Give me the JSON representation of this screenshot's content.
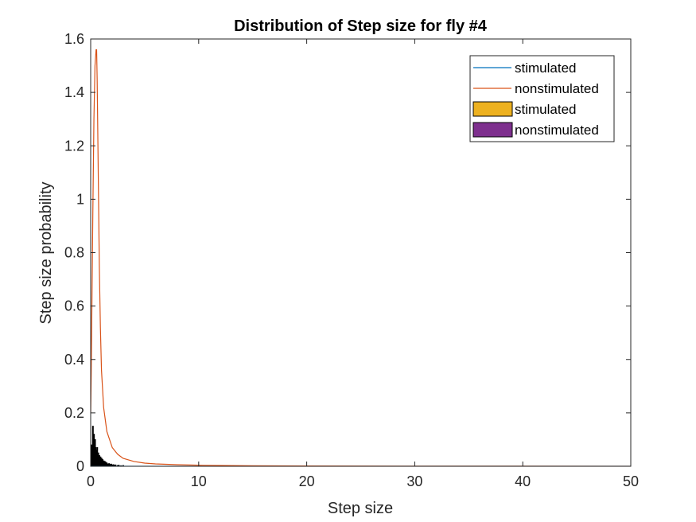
{
  "chart_data": {
    "type": "line",
    "title": "Distribution of Step size for fly #4",
    "xlabel": "Step size",
    "ylabel": "Step size probability",
    "xlim": [
      0,
      50
    ],
    "ylim": [
      0,
      1.6
    ],
    "xticks": [
      0,
      10,
      20,
      30,
      40,
      50
    ],
    "yticks": [
      0,
      0.2,
      0.4,
      0.6,
      0.8,
      1,
      1.2,
      1.4,
      1.6
    ],
    "xtick_labels": [
      "0",
      "10",
      "20",
      "30",
      "40",
      "50"
    ],
    "ytick_labels": [
      "0",
      "0.2",
      "0.4",
      "0.6",
      "0.8",
      "1",
      "1.2",
      "1.4",
      "1.6"
    ],
    "grid": false,
    "legend_position": "top-right",
    "legend": [
      {
        "label": "stimulated",
        "kind": "line",
        "color": "#0072BD"
      },
      {
        "label": "nonstimulated",
        "kind": "line",
        "color": "#D95319"
      },
      {
        "label": "stimulated",
        "kind": "bar",
        "color": "#EDB120"
      },
      {
        "label": "nonstimulated",
        "kind": "bar",
        "color": "#7E2F8E"
      }
    ],
    "series": [
      {
        "name": "stimulated",
        "kind": "line",
        "color": "#0072BD",
        "x": [
          0,
          50
        ],
        "y": [
          0,
          0
        ]
      },
      {
        "name": "nonstimulated",
        "kind": "line",
        "color": "#D95319",
        "x": [
          0,
          0.05,
          0.1,
          0.2,
          0.3,
          0.4,
          0.5,
          0.55,
          0.6,
          0.7,
          0.8,
          0.9,
          1.0,
          1.2,
          1.5,
          2.0,
          2.5,
          3,
          4,
          5,
          6,
          8,
          10,
          15,
          20,
          30,
          40,
          50
        ],
        "y": [
          0.2,
          0.35,
          0.55,
          0.95,
          1.3,
          1.5,
          1.56,
          1.56,
          1.45,
          1.1,
          0.75,
          0.52,
          0.36,
          0.22,
          0.13,
          0.07,
          0.045,
          0.03,
          0.018,
          0.012,
          0.009,
          0.006,
          0.004,
          0.002,
          0.001,
          0.0005,
          0.0003,
          0.0002
        ]
      },
      {
        "name": "stimulated",
        "kind": "bar",
        "color": "#EDB120",
        "x": [
          0.1,
          0.2,
          0.3,
          0.4,
          0.5,
          0.6,
          0.7,
          0.8,
          0.9,
          1.0,
          1.1,
          1.2,
          1.3,
          1.4,
          1.5,
          1.7,
          1.9,
          2.1,
          2.3,
          2.6,
          3.0
        ],
        "y": [
          0.08,
          0.15,
          0.12,
          0.1,
          0.06,
          0.07,
          0.05,
          0.04,
          0.035,
          0.03,
          0.025,
          0.02,
          0.018,
          0.015,
          0.012,
          0.01,
          0.008,
          0.006,
          0.005,
          0.004,
          0.003
        ]
      },
      {
        "name": "nonstimulated",
        "kind": "bar",
        "color": "#7E2F8E",
        "x": [
          0.15,
          0.25,
          0.35,
          0.45,
          0.55,
          0.65,
          0.75,
          0.85,
          0.95,
          1.05,
          1.15,
          1.25,
          1.35,
          1.45,
          1.6,
          1.8,
          2.0,
          2.2,
          2.5,
          2.8
        ],
        "y": [
          0.06,
          0.1,
          0.09,
          0.07,
          0.05,
          0.045,
          0.035,
          0.03,
          0.025,
          0.02,
          0.018,
          0.015,
          0.012,
          0.01,
          0.008,
          0.007,
          0.005,
          0.004,
          0.003,
          0.002
        ]
      }
    ]
  }
}
